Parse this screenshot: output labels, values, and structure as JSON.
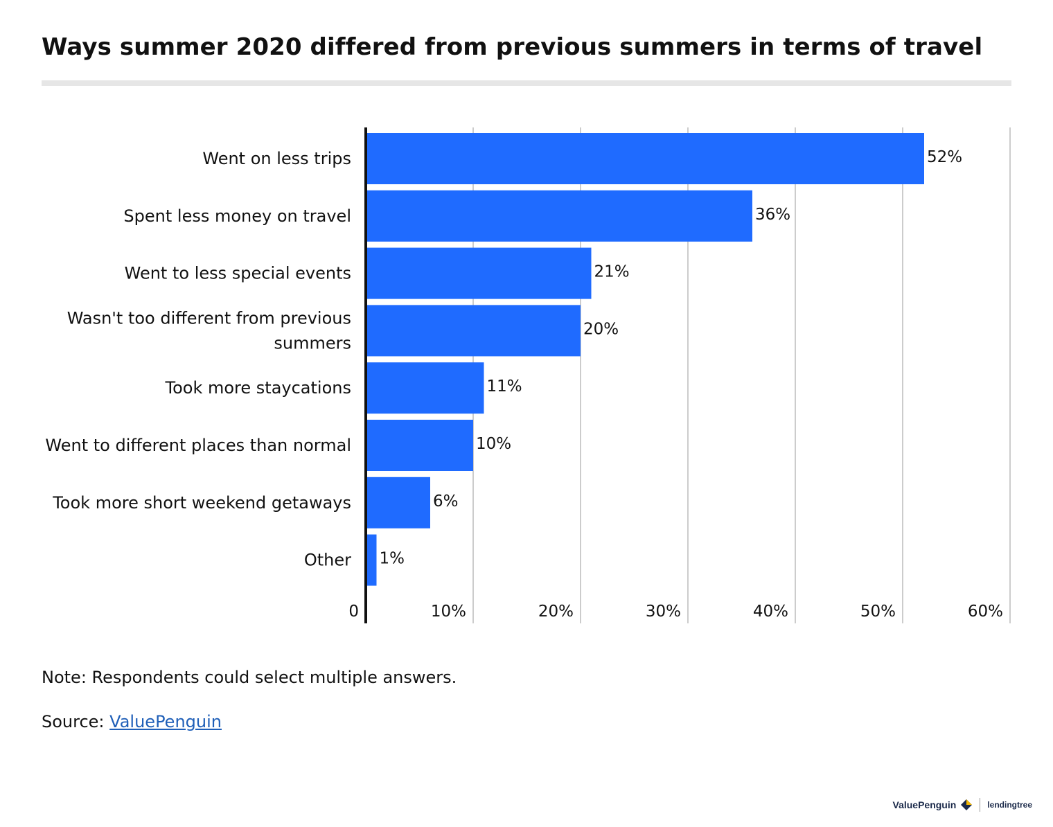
{
  "title": "Ways summer 2020 differed from previous summers in terms of travel",
  "note": "Note: Respondents could select multiple answers.",
  "source_prefix": "Source: ",
  "source_link": "ValuePenguin",
  "brand": {
    "valuepenguin": "ValuePenguin",
    "lendingtree": "lendingtree"
  },
  "colors": {
    "bar": "#1f6bff",
    "grid": "#cccccc",
    "axis": "#111111",
    "title_rule": "#e6e6e6"
  },
  "chart_data": {
    "type": "bar",
    "orientation": "horizontal",
    "categories": [
      [
        "Went on less trips"
      ],
      [
        "Spent less money on travel"
      ],
      [
        "Went to less special events"
      ],
      [
        "Wasn't too different from previous",
        "summers"
      ],
      [
        "Took more staycations"
      ],
      [
        "Went to different places than normal"
      ],
      [
        "Took more short weekend getaways"
      ],
      [
        "Other"
      ]
    ],
    "values": [
      52,
      36,
      21,
      20,
      11,
      10,
      6,
      1
    ],
    "value_labels": [
      "52%",
      "36%",
      "21%",
      "20%",
      "11%",
      "10%",
      "6%",
      "1%"
    ],
    "xlim": [
      0,
      60
    ],
    "x_ticks": [
      0,
      10,
      20,
      30,
      40,
      50,
      60
    ],
    "x_tick_labels": [
      "0",
      "10%",
      "20%",
      "30%",
      "40%",
      "50%",
      "60%"
    ],
    "grid": true
  }
}
